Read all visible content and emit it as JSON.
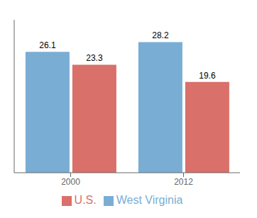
{
  "chart_data": {
    "type": "bar",
    "categories": [
      "2000",
      "2012"
    ],
    "series": [
      {
        "name": "West Virginia",
        "color": "#7aadd4",
        "values": [
          26.1,
          28.2
        ]
      },
      {
        "name": "U.S.",
        "color": "#d9706a",
        "values": [
          23.3,
          19.6
        ]
      }
    ],
    "ylim": [
      0,
      33
    ],
    "yticks": [],
    "grid": false,
    "legend": "bottom",
    "data_labels": true,
    "tick_labels": "x"
  }
}
